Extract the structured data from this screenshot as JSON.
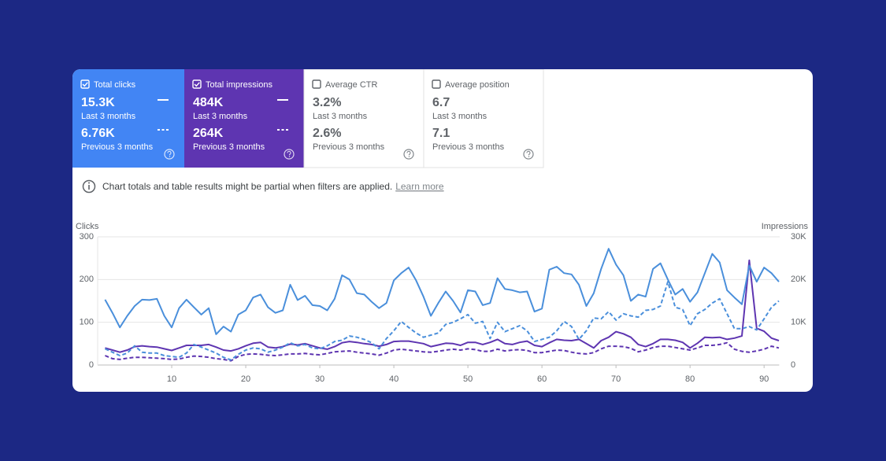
{
  "cards": [
    {
      "label": "Total clicks",
      "value": "15.3K",
      "period": "Last 3 months",
      "previous_value": "6.76K",
      "previous_period": "Previous 3 months",
      "checked": true,
      "color": "#4285f4"
    },
    {
      "label": "Total impressions",
      "value": "484K",
      "period": "Last 3 months",
      "previous_value": "264K",
      "previous_period": "Previous 3 months",
      "checked": true,
      "color": "#5e35b1"
    },
    {
      "label": "Average CTR",
      "value": "3.2%",
      "period": "Last 3 months",
      "previous_value": "2.6%",
      "previous_period": "Previous 3 months",
      "checked": false
    },
    {
      "label": "Average position",
      "value": "6.7",
      "period": "Last 3 months",
      "previous_value": "7.1",
      "previous_period": "Previous 3 months",
      "checked": false
    }
  ],
  "notice": {
    "text": "Chart totals and table results might be partial when filters are applied.",
    "link": "Learn more"
  },
  "chart_data": {
    "type": "line",
    "y_label": "Clicks",
    "y2_label": "Impressions",
    "grid": true,
    "x": [
      1,
      2,
      3,
      4,
      5,
      6,
      7,
      8,
      9,
      10,
      11,
      12,
      13,
      14,
      15,
      16,
      17,
      18,
      19,
      20,
      21,
      22,
      23,
      24,
      25,
      26,
      27,
      28,
      29,
      30,
      31,
      32,
      33,
      34,
      35,
      36,
      37,
      38,
      39,
      40,
      41,
      42,
      43,
      44,
      45,
      46,
      47,
      48,
      49,
      50,
      51,
      52,
      53,
      54,
      55,
      56,
      57,
      58,
      59,
      60,
      61,
      62,
      63,
      64,
      65,
      66,
      67,
      68,
      69,
      70,
      71,
      72,
      73,
      74,
      75,
      76,
      77,
      78,
      79,
      80,
      81,
      82,
      83,
      84,
      85,
      86,
      87,
      88,
      89,
      90,
      91,
      92
    ],
    "xlim": [
      0,
      92
    ],
    "xticks": [
      10,
      20,
      30,
      40,
      50,
      60,
      70,
      80,
      90
    ],
    "ylim": [
      0,
      300
    ],
    "yticks": [
      0,
      100,
      200,
      300
    ],
    "y2lim": [
      0,
      30000
    ],
    "y2ticks": [
      0,
      {
        "value": 10000,
        "label": "10K"
      },
      {
        "value": 20000,
        "label": "20K"
      },
      {
        "value": 30000,
        "label": "30K"
      }
    ],
    "series": [
      {
        "color": "#4a8fdb",
        "dashed": false,
        "values": [
          153,
          122,
          88,
          115,
          138,
          153,
          152,
          155,
          115,
          88,
          133,
          153,
          135,
          118,
          133,
          72,
          90,
          78,
          118,
          128,
          158,
          165,
          135,
          122,
          128,
          188,
          152,
          162,
          140,
          138,
          128,
          155,
          210,
          200,
          168,
          165,
          148,
          133,
          145,
          198,
          215,
          228,
          198,
          160,
          115,
          145,
          172,
          150,
          123,
          175,
          172,
          140,
          145,
          203,
          178,
          175,
          170,
          172,
          125,
          132,
          223,
          230,
          215,
          212,
          188,
          138,
          168,
          225,
          272,
          235,
          210,
          150,
          165,
          160,
          225,
          238,
          200,
          165,
          178,
          148,
          170,
          215,
          260,
          240,
          175,
          158,
          142,
          233,
          195,
          228,
          215,
          195
        ]
      },
      {
        "color": "#4a8fdb",
        "dashed": true,
        "values": [
          38,
          30,
          22,
          28,
          45,
          30,
          28,
          28,
          22,
          20,
          18,
          28,
          48,
          42,
          35,
          28,
          18,
          12,
          25,
          35,
          40,
          38,
          30,
          35,
          42,
          52,
          45,
          48,
          40,
          38,
          45,
          55,
          58,
          68,
          65,
          60,
          52,
          38,
          62,
          80,
          102,
          88,
          75,
          65,
          70,
          75,
          95,
          100,
          108,
          118,
          98,
          102,
          62,
          100,
          78,
          85,
          92,
          80,
          55,
          60,
          65,
          80,
          102,
          90,
          60,
          80,
          110,
          108,
          125,
          105,
          120,
          115,
          112,
          128,
          130,
          138,
          195,
          135,
          130,
          92,
          120,
          130,
          145,
          155,
          120,
          85,
          85,
          90,
          82,
          108,
          135,
          150
        ]
      },
      {
        "color": "#5e35b1",
        "dashed": false,
        "axis": "y2",
        "values": [
          4000,
          3500,
          3000,
          3500,
          4300,
          4500,
          4300,
          4200,
          3800,
          3400,
          4000,
          4600,
          4600,
          4600,
          4800,
          4200,
          3500,
          3300,
          3800,
          4500,
          5100,
          5300,
          4200,
          4000,
          4300,
          4900,
          4700,
          5000,
          4500,
          4000,
          3700,
          4300,
          5200,
          5500,
          5300,
          5000,
          4800,
          4400,
          4800,
          5500,
          5600,
          5600,
          5300,
          5000,
          4300,
          4700,
          5100,
          5000,
          4600,
          5300,
          5300,
          4800,
          5300,
          6000,
          5000,
          4800,
          5300,
          5600,
          4600,
          4300,
          5200,
          6000,
          5800,
          5700,
          6000,
          5000,
          4000,
          5700,
          6500,
          7800,
          7300,
          6500,
          4800,
          4300,
          5000,
          6000,
          6000,
          5800,
          5300,
          4000,
          5100,
          6500,
          6400,
          6500,
          6000,
          6300,
          6800,
          24500,
          8600,
          7900,
          6300,
          5700
        ]
      },
      {
        "color": "#5e35b1",
        "dashed": true,
        "axis": "y2",
        "values": [
          2200,
          1500,
          1300,
          1600,
          1800,
          1800,
          1700,
          1600,
          1500,
          1300,
          1400,
          1800,
          2100,
          2000,
          1800,
          1500,
          1300,
          1000,
          2000,
          2500,
          2600,
          2500,
          2300,
          2200,
          2400,
          2600,
          2600,
          2700,
          2500,
          2400,
          2700,
          3100,
          3200,
          3300,
          3000,
          2800,
          2600,
          2300,
          2800,
          3500,
          3700,
          3500,
          3300,
          3100,
          3000,
          3200,
          3500,
          3700,
          3500,
          3800,
          3600,
          3200,
          3200,
          3700,
          3300,
          3500,
          3600,
          3400,
          2900,
          2900,
          3200,
          3500,
          3400,
          3000,
          2700,
          2600,
          2900,
          3800,
          4400,
          4400,
          4300,
          3900,
          3100,
          3500,
          4100,
          4400,
          4400,
          4100,
          3800,
          3500,
          4000,
          4600,
          4600,
          4800,
          5200,
          3700,
          3200,
          3000,
          3300,
          3700,
          4400,
          4000
        ]
      }
    ]
  }
}
